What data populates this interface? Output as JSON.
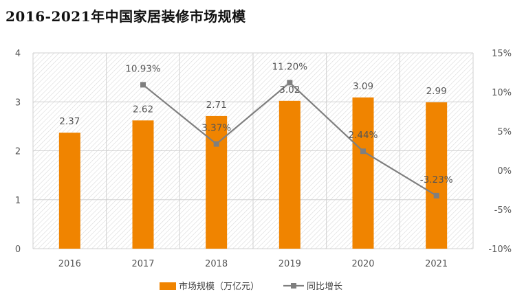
{
  "chart_data": {
    "type": "bar",
    "title": "2016-2021年中国家居装修市场规模",
    "categories": [
      "2016",
      "2017",
      "2018",
      "2019",
      "2020",
      "2021"
    ],
    "series": [
      {
        "name": "市场规模（万亿元）",
        "type": "bar",
        "axis": "left",
        "color": "#F08400",
        "values": [
          2.37,
          2.62,
          2.71,
          3.02,
          3.09,
          2.99
        ],
        "labels": [
          "2.37",
          "2.62",
          "2.71",
          "3.02",
          "3.09",
          "2.99"
        ]
      },
      {
        "name": "同比增长",
        "type": "line",
        "axis": "right",
        "color": "#7F7F7F",
        "values": [
          null,
          10.93,
          3.37,
          11.2,
          2.44,
          -3.23
        ],
        "labels": [
          "",
          "10.93%",
          "3.37%",
          "11.20%",
          "2.44%",
          "-3.23%"
        ]
      }
    ],
    "y_left": {
      "min": 0,
      "max": 4,
      "ticks": [
        "0",
        "1",
        "2",
        "3",
        "4"
      ]
    },
    "y_right": {
      "min": -10,
      "max": 15,
      "ticks": [
        "-10%",
        "-5%",
        "0%",
        "5%",
        "10%",
        "15%"
      ]
    },
    "grid": true,
    "legend_position": "bottom"
  }
}
